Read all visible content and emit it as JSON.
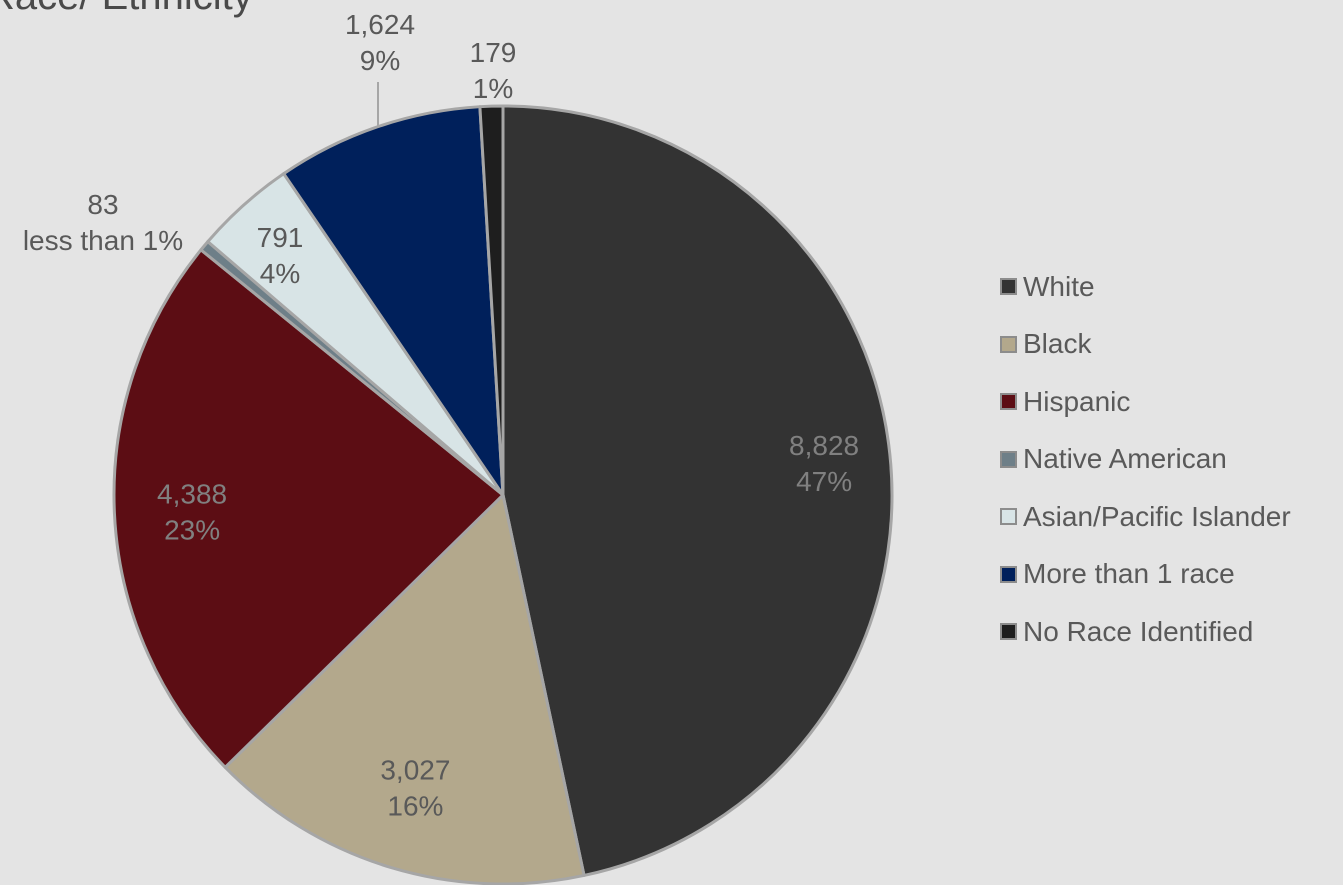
{
  "chart_data": {
    "type": "pie",
    "title": "Race/ Ethnicity",
    "categories": [
      "White",
      "Black",
      "Hispanic",
      "Native American",
      "Asian/Pacific Islander",
      "More than 1 race",
      "No Race Identified"
    ],
    "values": [
      8828,
      3027,
      4388,
      83,
      791,
      1624,
      179
    ],
    "value_labels": [
      "8,828",
      "3,027",
      "4,388",
      "83",
      "791",
      "1,624",
      "179"
    ],
    "percent_labels": [
      "47%",
      "16%",
      "23%",
      "less than 1%",
      "4%",
      "9%",
      "1%"
    ],
    "colors": [
      "#333333",
      "#b3a88c",
      "#5c0d14",
      "#6e7f88",
      "#d8e4e6",
      "#00205b",
      "#1e1e1e"
    ],
    "label_colors": [
      "#808080",
      "#595959",
      "#808080",
      "#595959",
      "#595959",
      "#595959",
      "#595959"
    ],
    "legend_position": "right"
  }
}
